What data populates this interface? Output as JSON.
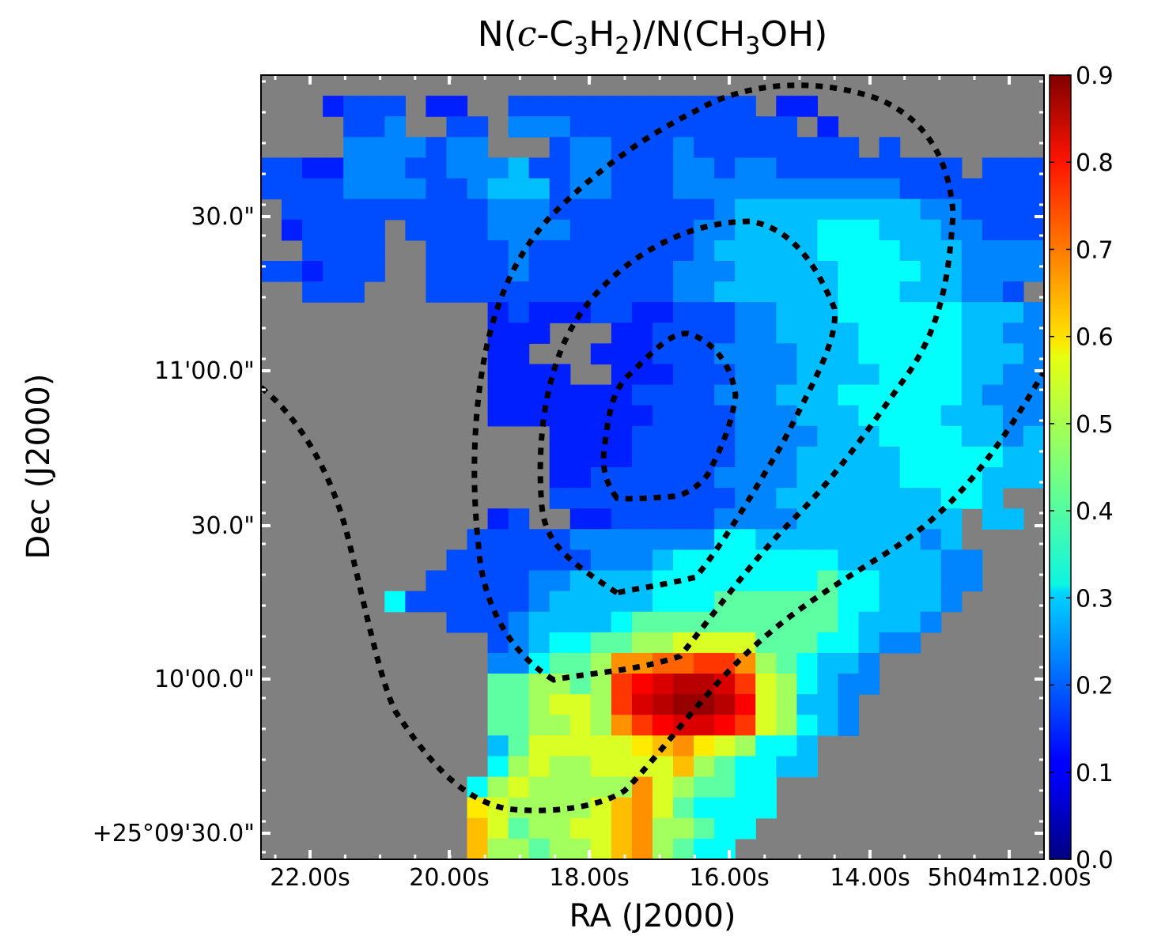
{
  "chart_data": {
    "type": "heatmap",
    "title": "N(c-C3H2)/N(CH3OH)",
    "title_parts": {
      "n1": "N(",
      "c": "c",
      "dash": "-C",
      "sub3": "3",
      "h": "H",
      "sub2": "2",
      "mid": ")/N(CH",
      "sub3b": "3",
      "end": "OH)"
    },
    "xlabel": "RA (J2000)",
    "ylabel": "Dec (J2000)",
    "x_ticks": [
      "22.00s",
      "20.00s",
      "18.00s",
      "16.00s",
      "14.00s",
      "5h04m12.00s"
    ],
    "y_ticks": [
      "+25°09'30.0\"",
      "10'00.0\"",
      "30.0\"",
      "11'00.0\"",
      "30.0\""
    ],
    "colorbar": {
      "colormap": "jet",
      "range": [
        0.0,
        0.9
      ],
      "ticks": [
        "0.0",
        "0.1",
        "0.2",
        "0.3",
        "0.4",
        "0.5",
        "0.6",
        "0.7",
        "0.8",
        "0.9"
      ]
    },
    "background_color": "#808080",
    "grid_cols": 38,
    "grid_rows": 38,
    "value_rows": [
      "..............................................",
      "...abbb.aa..bbbbbbbbbbbb.aa.........",
      "....bbc..bb.cccbbbbbbbbbbb.a.......",
      "....ccccbcc...bccbbbcbbbbbbbb.b....",
      "bbaacccbbcccdbbccbbbccbccbbbbbbbbb.bbb",
      "bbbbccccbbcdddbccbbbcccccccccccbbbbbbb",
      ".bbbbbbbbbbcccbbbbbbbbcdddddddddccbbbb",
      ".abbbb.bbbbccccbbbbbbccddddeeedddccbbb",
      "..bbbb..bbbbcbbbbbbbbcdddddeeeedddcccc",
      "bbabbb..bbbbcbbbbbbbcccdddddeeeeddcccc",
      "..bbb...bbbbbbbbbbbbccddddddeeedddccb",
      "...........abaaabbaabbbccdddeeeeeedddc",
      "...........aaa...aabbbbccddddeeeeeddcc",
      "...........aa...aaabbbccccdddeeeeedddc",
      "...........aaaa..aaabbbcccddddeeeeddcc",
      "...........aaaaaaabbbbcccdddeeeeeedccc",
      "...........aaaaaaaabbbbcccdddeeeedddcc",
      "..............aaaabbbbbccccdddeeeeddcd",
      "..............aaaabbbbbcccdddddeeeeedde",
      "..............aabbbbbbccccdddddeeeeddd",
      "..............bbbbbbbbbccddddddddeed..",
      "...........ab..aabbbbbccccdddddddd.dd.",
      "..........bbbbbccccccceeddddddddcd....",
      ".........bbbbbbbcccdeeeeeeeedddddcc....",
      "........bbbbbccddddeeeeeeeefeedddcc....",
      "......ebbbbbbcdddddeeeffffffeedddc.....",
      ".........bbbcddddeffffffffffedddc......",
      "...........bcdeeffgghhhhfffeedcc.......",
      "...........cceffgkkllmmkgfeddc.........",
      "...........ffggfgmnoppomhgedcc.........",
      "...........ffghhgmopqqpnhgddc..........",
      "...........ffgghgkmnoonmhgedc..........",
      "...........dfhhhhhijkihgeed...........",
      "...........eghgghhhhjgfeedd...........",
      "..........eghgggggkhgffee.............",
      "..........ihgggghjkhfeeee.............",
      "..........jhfgghhjkggfee..............",
      "..........jggfgghjkgfee..............."
    ],
    "contour_levels": [
      "outer",
      "middle",
      "inner",
      "core"
    ]
  }
}
